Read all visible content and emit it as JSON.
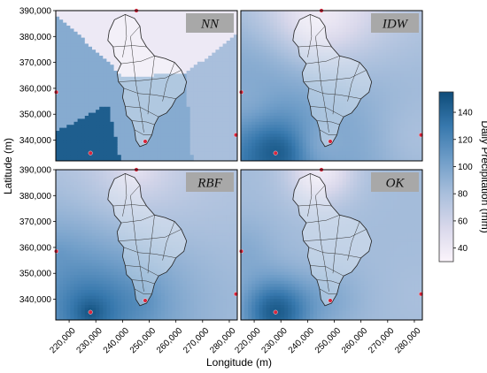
{
  "chart_data": {
    "type": "heatmap",
    "xlabel": "Longitude (m)",
    "ylabel": "Latitude (m)",
    "colorbar_label": "Daily Precipitation (mm)",
    "colorbar_range": [
      30,
      155
    ],
    "colorbar_ticks": [
      "40",
      "60",
      "80",
      "100",
      "120",
      "140"
    ],
    "colorbar_tick_values": [
      40,
      60,
      80,
      100,
      120,
      140
    ],
    "xlim": [
      215000,
      283000
    ],
    "ylim": [
      332000,
      390000
    ],
    "x_ticks": [
      "220,000",
      "230,000",
      "240,000",
      "250,000",
      "260,000",
      "270,000",
      "280,000"
    ],
    "x_tick_values": [
      220000,
      230000,
      240000,
      250000,
      260000,
      270000,
      280000
    ],
    "y_ticks": [
      "340,000",
      "350,000",
      "360,000",
      "370,000",
      "380,000",
      "390,000"
    ],
    "y_tick_values": [
      340000,
      350000,
      360000,
      370000,
      380000,
      390000
    ],
    "colormap": [
      "#fbf4fb",
      "#d9d8eb",
      "#a9bfdc",
      "#6f9dc8",
      "#3778ad",
      "#0e4c79"
    ],
    "station_color": "#d7263d",
    "stations": [
      {
        "x": 228000,
        "y": 335000,
        "value": 145
      },
      {
        "x": 215200,
        "y": 358500,
        "value": 95
      },
      {
        "x": 245200,
        "y": 390000,
        "value": 40
      },
      {
        "x": 248500,
        "y": 339500,
        "value": 95
      },
      {
        "x": 282500,
        "y": 342000,
        "value": 80
      }
    ],
    "panels": [
      {
        "label": "NN",
        "method": "nn"
      },
      {
        "label": "IDW",
        "method": "idw"
      },
      {
        "label": "RBF",
        "method": "rbf"
      },
      {
        "label": "OK",
        "method": "ok"
      }
    ]
  }
}
